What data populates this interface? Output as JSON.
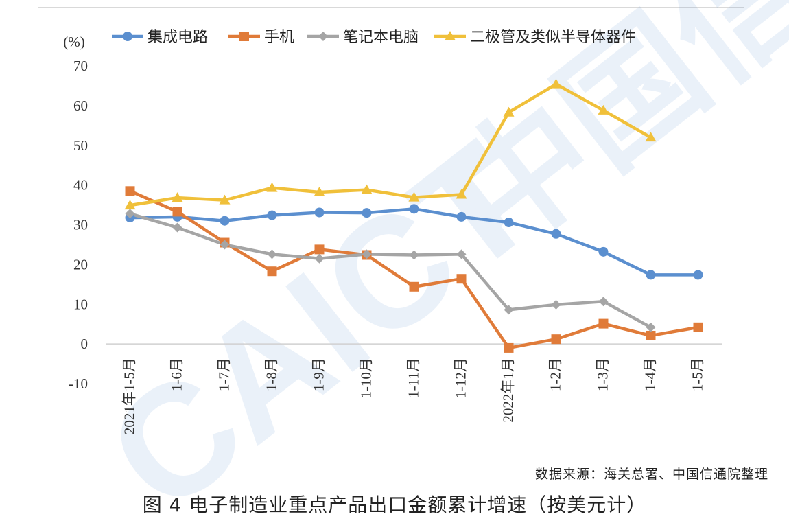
{
  "chart_data": {
    "type": "line",
    "unit_label": "(%)",
    "categories": [
      "2021年1-5月",
      "1-6月",
      "1-7月",
      "1-8月",
      "1-9月",
      "1-10月",
      "1-11月",
      "1-12月",
      "2022年1月",
      "1-2月",
      "1-3月",
      "1-4月",
      "1-5月"
    ],
    "ylim": [
      -10,
      70
    ],
    "yticks": [
      -10,
      0,
      10,
      20,
      30,
      40,
      50,
      60,
      70
    ],
    "legend_position": "top",
    "grid": false,
    "series": [
      {
        "name": "集成电路",
        "color": "#5b8fcf",
        "marker": "circle",
        "values": [
          31.8,
          32.0,
          31.0,
          32.4,
          33.1,
          33.0,
          34.0,
          32.0,
          30.6,
          27.7,
          23.2,
          17.4,
          17.4
        ]
      },
      {
        "name": "手机",
        "color": "#e07b39",
        "marker": "square",
        "values": [
          38.5,
          33.3,
          25.5,
          18.3,
          23.8,
          22.4,
          14.4,
          16.4,
          -1.0,
          1.2,
          5.1,
          2.1,
          4.2
        ]
      },
      {
        "name": "笔记本电脑",
        "color": "#a5a5a5",
        "marker": "diamond",
        "values": [
          32.8,
          29.3,
          25.0,
          22.6,
          21.5,
          22.6,
          22.4,
          22.6,
          8.6,
          9.9,
          10.7,
          4.2,
          null
        ]
      },
      {
        "name": "二极管及类似半导体器件",
        "color": "#f0c03a",
        "marker": "triangle",
        "values": [
          34.9,
          36.8,
          36.2,
          39.3,
          38.2,
          38.8,
          36.9,
          37.6,
          58.3,
          65.4,
          58.8,
          52.0,
          null
        ]
      }
    ]
  },
  "source_note": "数据来源：海关总署、中国信通院整理",
  "caption": "图 4  电子制造业重点产品出口金额累计增速（按美元计）",
  "watermark": "CAICT 中国信通"
}
